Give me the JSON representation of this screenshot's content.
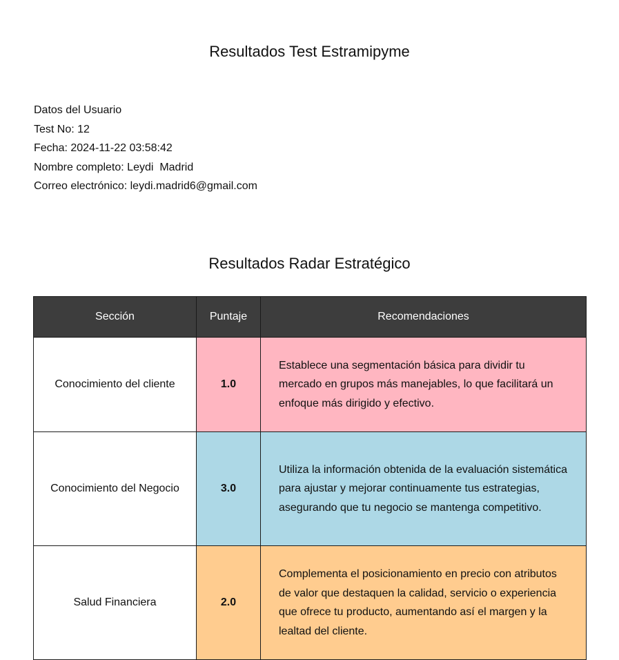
{
  "document": {
    "title": "Resultados Test Estramipyme"
  },
  "user": {
    "section_label": "Datos del Usuario",
    "fields": [
      {
        "label": "Test No:",
        "value": "12"
      },
      {
        "label": "Fecha:",
        "value": "2024-11-22 03:58:42"
      },
      {
        "label": "Nombre completo:",
        "value": "Leydi  Madrid"
      },
      {
        "label": "Correo electrónico:",
        "value": "leydi.madrid6@gmail.com"
      }
    ]
  },
  "radar": {
    "title": "Resultados Radar Estratégico",
    "headers": [
      "Sección",
      "Puntaje",
      "Recomendaciones"
    ],
    "rows": [
      {
        "section": "Conocimiento del cliente",
        "score": "1.0",
        "recommendation": "Establece una segmentación básica para dividir tu mercado en grupos más manejables, lo que facilitará un enfoque más dirigido y efectivo.",
        "color": "#ffb6c1"
      },
      {
        "section": "Conocimiento del Negocio",
        "score": "3.0",
        "recommendation": "Utiliza la información obtenida de la evaluación sistemática para ajustar y mejorar continuamente tus estrategias, asegurando que tu negocio se mantenga competitivo.",
        "color": "#add8e6"
      },
      {
        "section": "Salud Financiera",
        "score": "2.0",
        "recommendation": "Complementa el posicionamiento en precio con atributos de valor que destaquen la calidad, servicio o experiencia que ofrece tu producto, aumentando así el margen y la lealtad del cliente.",
        "color": "#ffcc8f"
      }
    ]
  }
}
